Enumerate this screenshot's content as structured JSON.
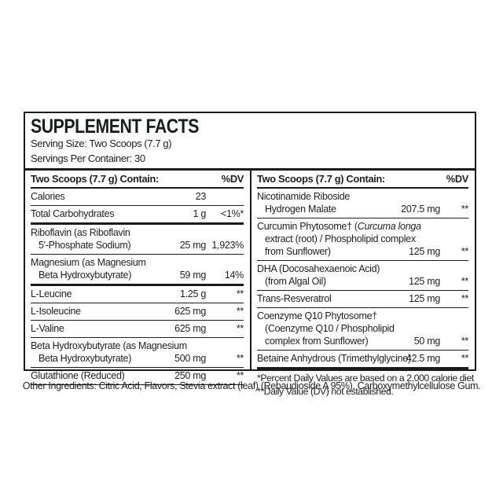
{
  "panel": {
    "title": "SUPPLEMENT FACTS",
    "serving_size": "Serving Size: Two Scoops (7.7 g)",
    "servings_per_container": "Servings Per Container: 30",
    "columns": [
      {
        "header": "Two Scoops (7.7 g) Contain:",
        "dv_header": "%DV",
        "rows": [
          {
            "lines": [
              "Calories"
            ],
            "amount": "23",
            "dv": ""
          },
          {
            "lines": [
              "Total Carbohydrates"
            ],
            "amount": "1 g",
            "dv": "<1%*",
            "thick_after": true
          },
          {
            "lines": [
              "Riboflavin (as Riboflavin",
              "5'-Phosphate Sodium)"
            ],
            "amount": "25 mg",
            "dv": "1,923%"
          },
          {
            "lines": [
              "Magnesium (as Magnesium",
              "Beta Hydroxybutyrate)"
            ],
            "amount": "59 mg",
            "dv": "14%",
            "thick_after": true
          },
          {
            "lines": [
              "L-Leucine"
            ],
            "amount": "1.25 g",
            "dv": "**"
          },
          {
            "lines": [
              "L-Isoleucine"
            ],
            "amount": "625 mg",
            "dv": "**"
          },
          {
            "lines": [
              "L-Valine"
            ],
            "amount": "625 mg",
            "dv": "**"
          },
          {
            "lines": [
              "Beta Hydroxybutyrate (as Magnesium",
              "Beta Hydroxybutyrate)"
            ],
            "amount": "500 mg",
            "dv": "**"
          },
          {
            "lines": [
              "Glutathione (Reduced)"
            ],
            "amount": "250 mg",
            "dv": "**"
          }
        ],
        "footnotes": []
      },
      {
        "header": "Two Scoops (7.7 g) Contain:",
        "dv_header": "%DV",
        "rows": [
          {
            "lines": [
              "Nicotinamide Riboside",
              "Hydrogen Malate"
            ],
            "amount": "207.5 mg",
            "dv": "**"
          },
          {
            "lines": [
              [
                {
                  "t": "Curcumin Phytosome† ("
                },
                {
                  "t": "Curcuma longa",
                  "i": true
                }
              ],
              "extract (root) / Phospholipid complex",
              "from Sunflower)"
            ],
            "amount": "125 mg",
            "dv": "**"
          },
          {
            "lines": [
              "DHA (Docosahexaenoic Acid)",
              "(from Algal Oil)"
            ],
            "amount": "125 mg",
            "dv": "**"
          },
          {
            "lines": [
              "Trans-Resveratrol"
            ],
            "amount": "125 mg",
            "dv": "**"
          },
          {
            "lines": [
              "Coenzyme Q10 Phytosome†",
              "(Coenzyme Q10 / Phospholipid",
              "complex from Sunflower)"
            ],
            "amount": "50 mg",
            "dv": "**"
          },
          {
            "lines": [
              "Betaine Anhydrous (Trimethylglycine)"
            ],
            "amount": "42.5 mg",
            "dv": "**",
            "thick_after": true
          }
        ],
        "footnotes": [
          "*Percent Daily Values are based on a 2,000 calorie diet",
          "**Daily Value (DV) not established."
        ]
      }
    ]
  },
  "other_ingredients": "Other Ingredients: Citric Acid, Flavors, Stevia extract (leaf) (Rebaudioside A 95%), Carboxymethylcellulose Gum.",
  "colors": {
    "text": "#1d1f1d",
    "line": "#1a1c1a",
    "background": "#ffffff"
  }
}
